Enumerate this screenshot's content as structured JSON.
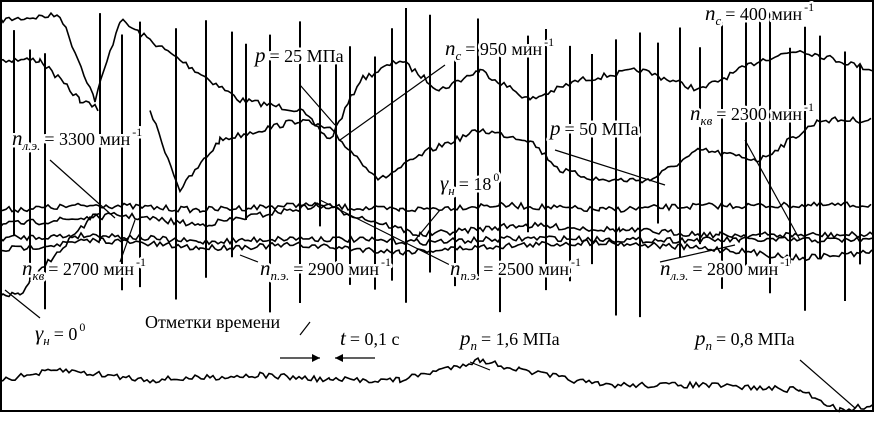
{
  "annotations": [
    {
      "symbol": "p",
      "text": "= 25 МПа"
    },
    {
      "symbol": "n",
      "sub": "c",
      "text": "= 950 мин",
      "sup": "-1"
    },
    {
      "symbol": "n",
      "sub": "c",
      "text": "= 400 мин",
      "sup": "-1"
    },
    {
      "symbol": "n",
      "sub": "кв",
      "text": "= 2300 мин",
      "sup": "-1"
    },
    {
      "symbol": "n",
      "sub": "л.э.",
      "text": "= 3300 мин",
      "sup": "-1"
    },
    {
      "symbol": "p",
      "text": "= 50 МПа"
    },
    {
      "symbol": "γ",
      "sub": "н",
      "text": "= 18",
      "sup": "0"
    },
    {
      "symbol": "n",
      "sub": "кв",
      "text": "= 2700 мин",
      "sup": "-1"
    },
    {
      "symbol": "n",
      "sub": "п.э.",
      "text": "= 2900 мин",
      "sup": "-1"
    },
    {
      "symbol": "n",
      "sub": "п.э.",
      "text": "= 2500 мин",
      "sup": "-1"
    },
    {
      "symbol": "n",
      "sub": "л.э.",
      "text": "= 2800 мин",
      "sup": "-1"
    },
    {
      "symbol": "γ",
      "sub": "н",
      "text": "= 0",
      "sup": "0"
    },
    {
      "text": "Отметки времени"
    },
    {
      "symbol": "t",
      "text": "= 0,1 c"
    },
    {
      "symbol": "p",
      "sub": "п",
      "text": "= 1,6 МПа"
    },
    {
      "symbol": "p",
      "sub": "п",
      "text": "= 0,8 МПа"
    }
  ]
}
